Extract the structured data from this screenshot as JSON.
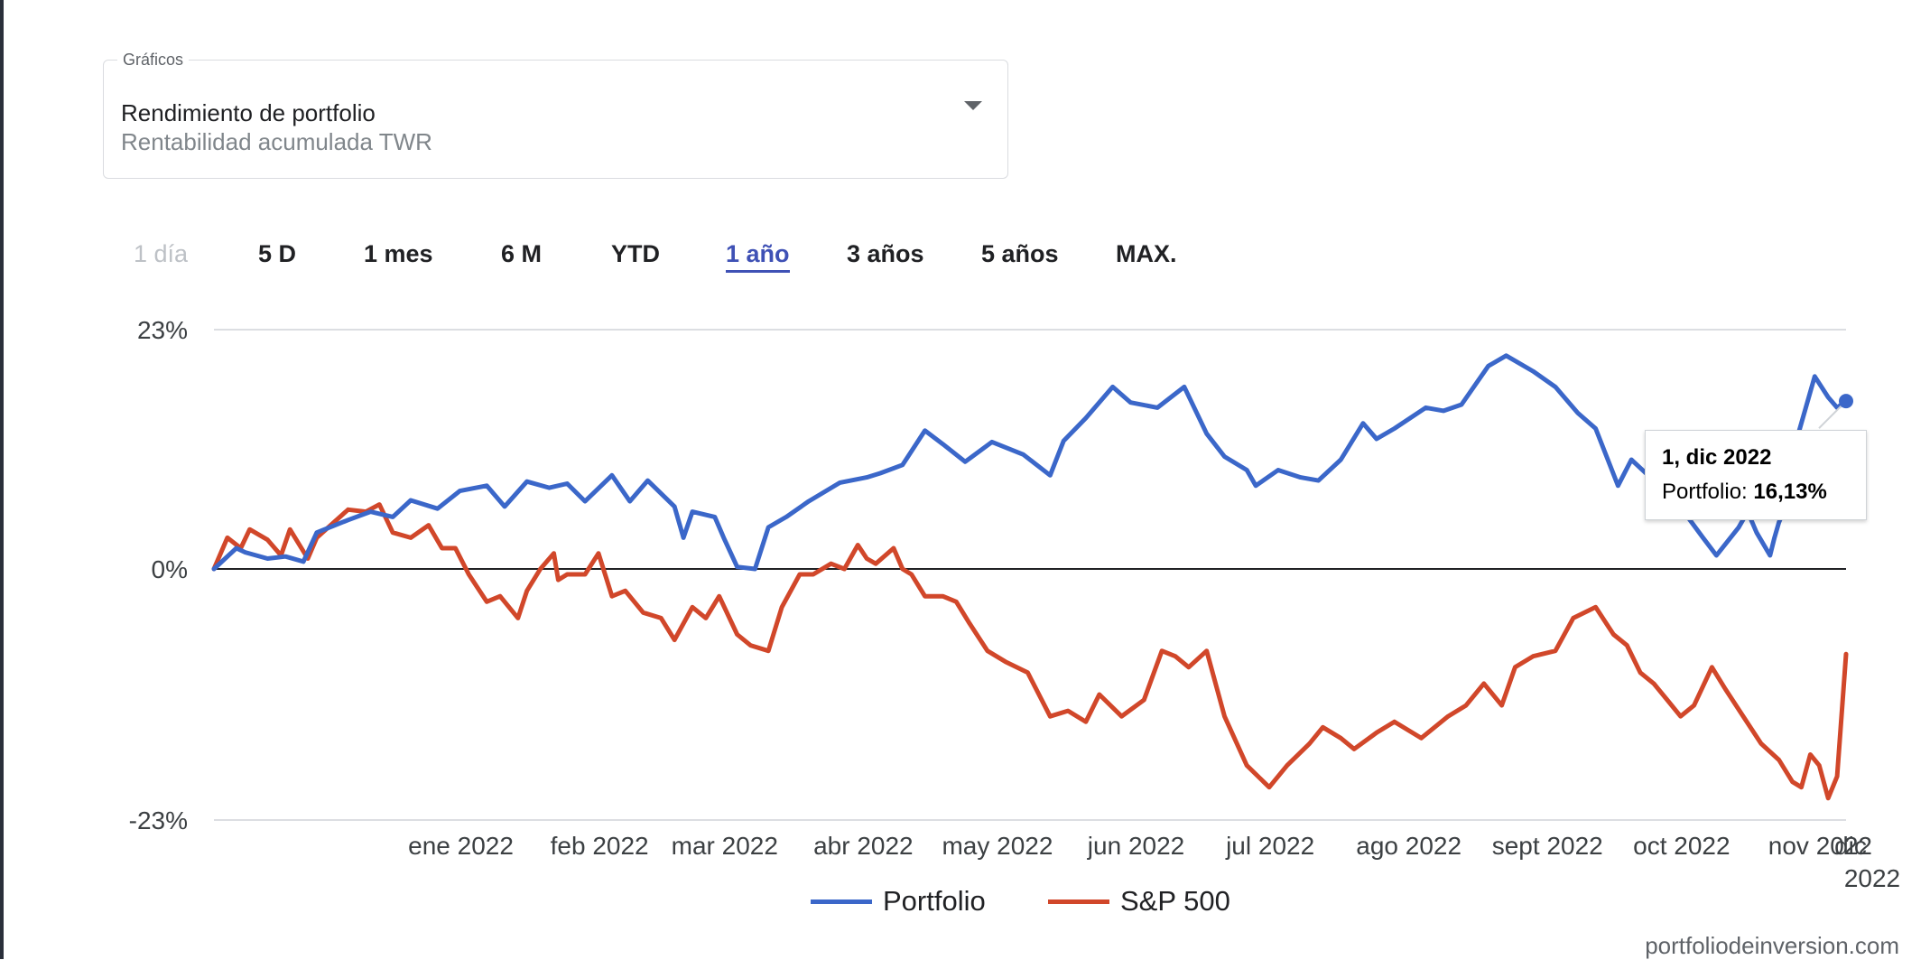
{
  "selector": {
    "label": "Gráficos",
    "title": "Rendimiento de portfolio",
    "subtitle": "Rentabilidad acumulada TWR"
  },
  "tabs": [
    {
      "label": "1 día",
      "state": "disabled"
    },
    {
      "label": "5 D",
      "state": "normal"
    },
    {
      "label": "1 mes",
      "state": "normal"
    },
    {
      "label": "6 M",
      "state": "normal"
    },
    {
      "label": "YTD",
      "state": "normal"
    },
    {
      "label": "1 año",
      "state": "active"
    },
    {
      "label": "3 años",
      "state": "normal"
    },
    {
      "label": "5 años",
      "state": "normal"
    },
    {
      "label": "MAX.",
      "state": "normal"
    }
  ],
  "tooltip": {
    "date": "1, dic 2022",
    "series_label": "Portfolio:",
    "value": "16,13%"
  },
  "footer": "portfoliodeinversion.com",
  "colors": {
    "portfolio": "#3b67c9",
    "sp500": "#d1472a",
    "accent": "#3f51b5"
  },
  "chart_data": {
    "type": "line",
    "y_tick_labels": [
      "23%",
      "0%",
      "-23%"
    ],
    "ylim": [
      -23,
      23
    ],
    "x_tick_labels": [
      "ene 2022",
      "feb 2022",
      "mar 2022",
      "abr 2022",
      "may 2022",
      "jun 2022",
      "jul 2022",
      "ago 2022",
      "sept 2022",
      "oct 2022",
      "nov 2022",
      "dic\n2022"
    ],
    "x_domain": [
      "2021-12-01",
      "2022-12-01"
    ],
    "legend": "bottom",
    "series": [
      {
        "name": "Portfolio",
        "color": "#3b67c9",
        "points": [
          [
            "2021-12-01",
            0.0
          ],
          [
            "2021-12-06",
            2.0
          ],
          [
            "2021-12-08",
            1.6
          ],
          [
            "2021-12-13",
            1.0
          ],
          [
            "2021-12-17",
            1.2
          ],
          [
            "2021-12-21",
            0.7
          ],
          [
            "2021-12-24",
            3.5
          ],
          [
            "2021-12-31",
            4.7
          ],
          [
            "2022-01-05",
            5.5
          ],
          [
            "2022-01-10",
            5.0
          ],
          [
            "2022-01-14",
            6.6
          ],
          [
            "2022-01-20",
            5.8
          ],
          [
            "2022-01-25",
            7.5
          ],
          [
            "2022-01-31",
            8.0
          ],
          [
            "2022-02-04",
            6.0
          ],
          [
            "2022-02-09",
            8.4
          ],
          [
            "2022-02-14",
            7.8
          ],
          [
            "2022-02-18",
            8.2
          ],
          [
            "2022-02-22",
            6.5
          ],
          [
            "2022-02-28",
            9.0
          ],
          [
            "2022-03-04",
            6.5
          ],
          [
            "2022-03-08",
            8.5
          ],
          [
            "2022-03-14",
            6.0
          ],
          [
            "2022-03-16",
            3.0
          ],
          [
            "2022-03-18",
            5.5
          ],
          [
            "2022-03-23",
            5.0
          ],
          [
            "2022-03-25",
            3.0
          ],
          [
            "2022-03-28",
            0.2
          ],
          [
            "2022-04-01",
            0.0
          ],
          [
            "2022-04-04",
            4.0
          ],
          [
            "2022-04-08",
            5.0
          ],
          [
            "2022-04-13",
            6.5
          ],
          [
            "2022-04-20",
            8.3
          ],
          [
            "2022-04-26",
            8.8
          ],
          [
            "2022-04-29",
            9.2
          ],
          [
            "2022-05-04",
            10.0
          ],
          [
            "2022-05-09",
            13.3
          ],
          [
            "2022-05-13",
            12.0
          ],
          [
            "2022-05-18",
            10.3
          ],
          [
            "2022-05-24",
            12.2
          ],
          [
            "2022-05-31",
            11.0
          ],
          [
            "2022-06-06",
            9.0
          ],
          [
            "2022-06-09",
            12.3
          ],
          [
            "2022-06-14",
            14.5
          ],
          [
            "2022-06-20",
            17.5
          ],
          [
            "2022-06-24",
            16.0
          ],
          [
            "2022-06-30",
            15.5
          ],
          [
            "2022-07-06",
            17.5
          ],
          [
            "2022-07-11",
            13.0
          ],
          [
            "2022-07-15",
            10.8
          ],
          [
            "2022-07-20",
            9.5
          ],
          [
            "2022-07-22",
            8.0
          ],
          [
            "2022-07-27",
            9.5
          ],
          [
            "2022-08-01",
            8.8
          ],
          [
            "2022-08-05",
            8.5
          ],
          [
            "2022-08-10",
            10.5
          ],
          [
            "2022-08-15",
            14.0
          ],
          [
            "2022-08-18",
            12.5
          ],
          [
            "2022-08-22",
            13.5
          ],
          [
            "2022-08-29",
            15.5
          ],
          [
            "2022-09-02",
            15.2
          ],
          [
            "2022-09-06",
            15.8
          ],
          [
            "2022-09-12",
            19.5
          ],
          [
            "2022-09-16",
            20.5
          ],
          [
            "2022-09-22",
            19.0
          ],
          [
            "2022-09-27",
            17.5
          ],
          [
            "2022-10-02",
            15.0
          ],
          [
            "2022-10-06",
            13.5
          ],
          [
            "2022-10-11",
            8.0
          ],
          [
            "2022-10-14",
            10.5
          ],
          [
            "2022-10-19",
            8.5
          ],
          [
            "2022-10-24",
            6.5
          ],
          [
            "2022-10-30",
            3.0
          ],
          [
            "2022-11-02",
            1.3
          ],
          [
            "2022-11-07",
            4.0
          ],
          [
            "2022-11-09",
            5.5
          ],
          [
            "2022-11-11",
            3.5
          ],
          [
            "2022-11-14",
            1.3
          ],
          [
            "2022-11-15",
            3.0
          ],
          [
            "2022-11-16",
            4.5
          ],
          [
            "2022-11-17",
            5.5
          ],
          [
            "2022-11-18",
            6.0
          ],
          [
            "2022-11-19",
            7.5
          ],
          [
            "2022-11-20",
            12.5
          ],
          [
            "2022-11-22",
            15.5
          ],
          [
            "2022-11-24",
            18.5
          ],
          [
            "2022-11-27",
            16.5
          ],
          [
            "2022-11-29",
            15.5
          ],
          [
            "2022-12-01",
            16.13
          ]
        ]
      },
      {
        "name": "S&P 500",
        "color": "#d1472a",
        "points": [
          [
            "2021-12-01",
            0.0
          ],
          [
            "2021-12-04",
            3.0
          ],
          [
            "2021-12-07",
            2.0
          ],
          [
            "2021-12-09",
            3.8
          ],
          [
            "2021-12-13",
            2.8
          ],
          [
            "2021-12-16",
            1.3
          ],
          [
            "2021-12-18",
            3.8
          ],
          [
            "2021-12-22",
            1.0
          ],
          [
            "2021-12-24",
            3.0
          ],
          [
            "2021-12-31",
            5.7
          ],
          [
            "2022-01-04",
            5.5
          ],
          [
            "2022-01-07",
            6.2
          ],
          [
            "2022-01-10",
            3.5
          ],
          [
            "2022-01-14",
            3.0
          ],
          [
            "2022-01-18",
            4.2
          ],
          [
            "2022-01-21",
            2.0
          ],
          [
            "2022-01-24",
            2.0
          ],
          [
            "2022-01-27",
            -0.5
          ],
          [
            "2022-01-31",
            -3.0
          ],
          [
            "2022-02-03",
            -2.5
          ],
          [
            "2022-02-07",
            -4.5
          ],
          [
            "2022-02-09",
            -2.0
          ],
          [
            "2022-02-12",
            0.0
          ],
          [
            "2022-02-15",
            1.5
          ],
          [
            "2022-02-16",
            -1.0
          ],
          [
            "2022-02-18",
            -0.5
          ],
          [
            "2022-02-22",
            -0.5
          ],
          [
            "2022-02-25",
            1.5
          ],
          [
            "2022-02-28",
            -2.5
          ],
          [
            "2022-03-03",
            -2.0
          ],
          [
            "2022-03-07",
            -4.0
          ],
          [
            "2022-03-11",
            -4.5
          ],
          [
            "2022-03-14",
            -6.5
          ],
          [
            "2022-03-18",
            -3.5
          ],
          [
            "2022-03-21",
            -4.5
          ],
          [
            "2022-03-24",
            -2.5
          ],
          [
            "2022-03-28",
            -6.0
          ],
          [
            "2022-03-31",
            -7.0
          ],
          [
            "2022-04-04",
            -7.5
          ],
          [
            "2022-04-07",
            -3.5
          ],
          [
            "2022-04-11",
            -0.5
          ],
          [
            "2022-04-14",
            -0.5
          ],
          [
            "2022-04-18",
            0.5
          ],
          [
            "2022-04-21",
            0.0
          ],
          [
            "2022-04-24",
            2.3
          ],
          [
            "2022-04-26",
            1.0
          ],
          [
            "2022-04-28",
            0.5
          ],
          [
            "2022-05-02",
            2.0
          ],
          [
            "2022-05-04",
            0.0
          ],
          [
            "2022-05-06",
            -0.5
          ],
          [
            "2022-05-09",
            -2.5
          ],
          [
            "2022-05-13",
            -2.5
          ],
          [
            "2022-05-16",
            -3.0
          ],
          [
            "2022-05-19",
            -5.0
          ],
          [
            "2022-05-23",
            -7.5
          ],
          [
            "2022-05-27",
            -8.5
          ],
          [
            "2022-06-01",
            -9.5
          ],
          [
            "2022-06-06",
            -13.5
          ],
          [
            "2022-06-10",
            -13.0
          ],
          [
            "2022-06-14",
            -14.0
          ],
          [
            "2022-06-17",
            -11.5
          ],
          [
            "2022-06-22",
            -13.5
          ],
          [
            "2022-06-27",
            -12.0
          ],
          [
            "2022-07-01",
            -7.5
          ],
          [
            "2022-07-04",
            -8.0
          ],
          [
            "2022-07-07",
            -9.0
          ],
          [
            "2022-07-11",
            -7.5
          ],
          [
            "2022-07-15",
            -13.5
          ],
          [
            "2022-07-20",
            -18.0
          ],
          [
            "2022-07-25",
            -20.0
          ],
          [
            "2022-07-29",
            -18.0
          ],
          [
            "2022-08-03",
            -16.0
          ],
          [
            "2022-08-06",
            -14.5
          ],
          [
            "2022-08-10",
            -15.5
          ],
          [
            "2022-08-13",
            -16.5
          ],
          [
            "2022-08-18",
            -15.0
          ],
          [
            "2022-08-22",
            -14.0
          ],
          [
            "2022-08-28",
            -15.5
          ],
          [
            "2022-09-03",
            -13.5
          ],
          [
            "2022-09-07",
            -12.5
          ],
          [
            "2022-09-11",
            -10.5
          ],
          [
            "2022-09-15",
            -12.5
          ],
          [
            "2022-09-18",
            -9.0
          ],
          [
            "2022-09-22",
            -8.0
          ],
          [
            "2022-09-27",
            -7.5
          ],
          [
            "2022-10-01",
            -4.5
          ],
          [
            "2022-10-06",
            -3.5
          ],
          [
            "2022-10-10",
            -6.0
          ],
          [
            "2022-10-13",
            -7.0
          ],
          [
            "2022-10-16",
            -9.5
          ],
          [
            "2022-10-19",
            -10.5
          ],
          [
            "2022-10-22",
            -12.0
          ],
          [
            "2022-10-25",
            -13.5
          ],
          [
            "2022-10-28",
            -12.5
          ],
          [
            "2022-11-01",
            -9.0
          ],
          [
            "2022-11-04",
            -11.0
          ],
          [
            "2022-11-08",
            -13.5
          ],
          [
            "2022-11-12",
            -16.0
          ],
          [
            "2022-11-16",
            -17.5
          ],
          [
            "2022-11-19",
            -19.5
          ],
          [
            "2022-11-21",
            -20.0
          ],
          [
            "2022-11-23",
            -17.0
          ],
          [
            "2022-11-25",
            -18.0
          ],
          [
            "2022-11-27",
            -21.0
          ],
          [
            "2022-11-29",
            -19.0
          ],
          [
            "2022-12-01",
            -7.8
          ]
        ]
      }
    ]
  }
}
